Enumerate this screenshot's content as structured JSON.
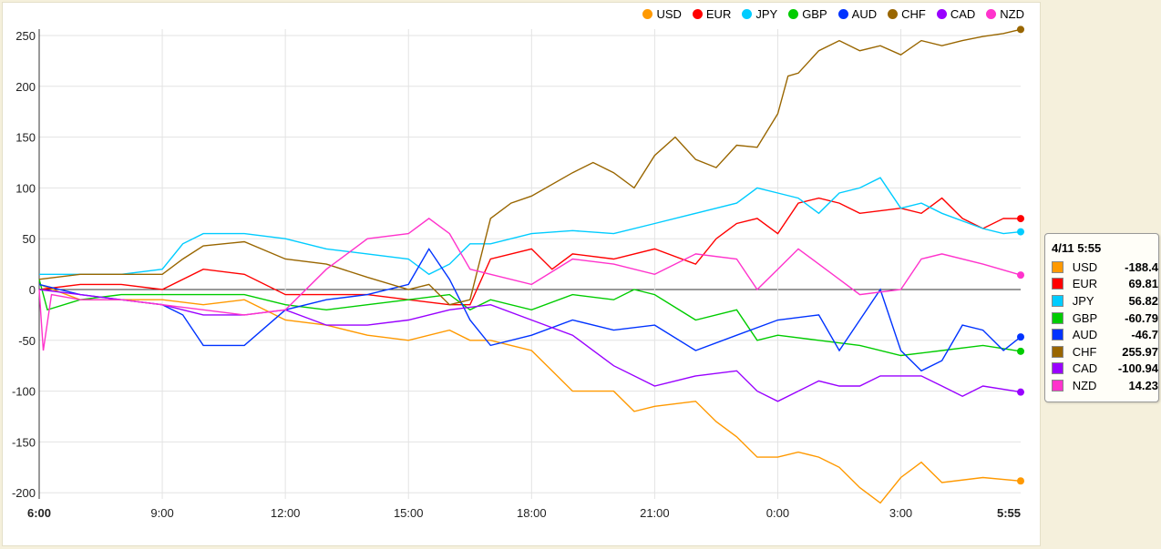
{
  "chart_data": {
    "type": "line",
    "title": "",
    "xlabel": "",
    "ylabel": "",
    "ylim": [
      -210,
      260
    ],
    "xlim_hours": [
      0,
      23.92
    ],
    "x_tick_labels": [
      "6:00",
      "9:00",
      "12:00",
      "15:00",
      "18:00",
      "21:00",
      "0:00",
      "3:00",
      "5:55"
    ],
    "x_tick_hours": [
      0,
      3,
      6,
      9,
      12,
      15,
      18,
      21,
      23.92
    ],
    "y_ticks": [
      -200,
      -150,
      -100,
      -50,
      0,
      50,
      100,
      150,
      200,
      250
    ],
    "legend_position": "top-right",
    "series": [
      {
        "name": "USD",
        "color": "#ff9900",
        "x": [
          0,
          1,
          2,
          3,
          4,
          5,
          6,
          7,
          8,
          9,
          10,
          10.5,
          11,
          11.5,
          12,
          12.5,
          13,
          14,
          14.5,
          15,
          16,
          16.5,
          17,
          17.5,
          18,
          18.5,
          19,
          19.5,
          20,
          20.5,
          21,
          21.5,
          22,
          23,
          23.92
        ],
        "y": [
          5,
          -10,
          -10,
          -10,
          -15,
          -10,
          -30,
          -35,
          -45,
          -50,
          -40,
          -50,
          -50,
          -55,
          -60,
          -80,
          -100,
          -100,
          -120,
          -115,
          -110,
          -130,
          -145,
          -165,
          -165,
          -160,
          -165,
          -175,
          -195,
          -210,
          -185,
          -170,
          -190,
          -185,
          -188.4
        ]
      },
      {
        "name": "EUR",
        "color": "#ff0000",
        "x": [
          0,
          1,
          2,
          3,
          4,
          5,
          6,
          7,
          8,
          9,
          10,
          10.5,
          11,
          12,
          12.5,
          13,
          14,
          15,
          16,
          16.5,
          17,
          17.5,
          18,
          18.5,
          19,
          19.5,
          20,
          21,
          21.5,
          22,
          22.5,
          23,
          23.5,
          23.92
        ],
        "y": [
          0,
          5,
          5,
          0,
          20,
          15,
          -5,
          -5,
          -5,
          -10,
          -15,
          -15,
          30,
          40,
          20,
          35,
          30,
          40,
          25,
          50,
          65,
          70,
          55,
          85,
          90,
          85,
          75,
          80,
          75,
          90,
          70,
          60,
          70,
          69.81
        ]
      },
      {
        "name": "JPY",
        "color": "#00ccff",
        "x": [
          0,
          1,
          2,
          3,
          3.5,
          4,
          5,
          6,
          7,
          8,
          9,
          9.5,
          10,
          10.5,
          11,
          12,
          13,
          14,
          15,
          16,
          17,
          17.5,
          18,
          18.5,
          19,
          19.5,
          20,
          20.5,
          21,
          21.5,
          22,
          23,
          23.5,
          23.92
        ],
        "y": [
          15,
          15,
          15,
          20,
          45,
          55,
          55,
          50,
          40,
          35,
          30,
          15,
          25,
          45,
          45,
          55,
          58,
          55,
          65,
          75,
          85,
          100,
          95,
          90,
          75,
          95,
          100,
          110,
          80,
          85,
          75,
          60,
          55,
          56.82
        ]
      },
      {
        "name": "GBP",
        "color": "#00cc00",
        "x": [
          0,
          0.2,
          1,
          2,
          3,
          4,
          5,
          6,
          7,
          8,
          9,
          10,
          10.5,
          11,
          12,
          13,
          14,
          14.5,
          15,
          16,
          17,
          17.5,
          18,
          19,
          20,
          21,
          22,
          23,
          23.92
        ],
        "y": [
          10,
          -20,
          -10,
          -5,
          -5,
          -5,
          -5,
          -15,
          -20,
          -15,
          -10,
          -5,
          -20,
          -10,
          -20,
          -5,
          -10,
          0,
          -5,
          -30,
          -20,
          -50,
          -45,
          -50,
          -55,
          -65,
          -60,
          -55,
          -60.79
        ]
      },
      {
        "name": "AUD",
        "color": "#0033ff",
        "x": [
          0,
          1,
          2,
          3,
          3.5,
          4,
          5,
          6,
          7,
          8,
          9,
          9.5,
          10,
          10.5,
          11,
          12,
          13,
          14,
          15,
          16,
          17,
          18,
          19,
          19.5,
          20,
          20.5,
          21,
          21.5,
          22,
          22.5,
          23,
          23.5,
          23.92
        ],
        "y": [
          5,
          -5,
          -10,
          -15,
          -25,
          -55,
          -55,
          -20,
          -10,
          -5,
          5,
          40,
          10,
          -30,
          -55,
          -45,
          -30,
          -40,
          -35,
          -60,
          -45,
          -30,
          -25,
          -60,
          -30,
          0,
          -60,
          -80,
          -70,
          -35,
          -40,
          -60,
          -46.7
        ]
      },
      {
        "name": "CHF",
        "color": "#996600",
        "x": [
          0,
          1,
          2,
          3,
          3.5,
          4,
          5,
          6,
          7,
          8,
          9,
          9.5,
          10,
          10.5,
          11,
          11.5,
          12,
          13,
          13.5,
          14,
          14.5,
          15,
          15.5,
          16,
          16.5,
          17,
          17.5,
          18,
          18.25,
          18.5,
          19,
          19.5,
          20,
          20.5,
          21,
          21.5,
          22,
          22.5,
          23,
          23.5,
          23.92
        ],
        "y": [
          10,
          15,
          15,
          15,
          30,
          43,
          47,
          30,
          25,
          12,
          0,
          5,
          -15,
          -10,
          70,
          85,
          92,
          115,
          125,
          115,
          100,
          132,
          150,
          128,
          120,
          142,
          140,
          173,
          210,
          213,
          235,
          245,
          235,
          240,
          231,
          245,
          240,
          245,
          249,
          252,
          255.97
        ]
      },
      {
        "name": "CAD",
        "color": "#9900ff",
        "x": [
          0,
          1,
          2,
          3,
          4,
          5,
          6,
          7,
          8,
          9,
          10,
          11,
          12,
          13,
          14,
          15,
          16,
          17,
          17.5,
          18,
          19,
          19.5,
          20,
          20.5,
          21,
          21.5,
          22,
          22.5,
          23,
          23.92
        ],
        "y": [
          0,
          -5,
          -10,
          -15,
          -25,
          -25,
          -20,
          -35,
          -35,
          -30,
          -20,
          -15,
          -30,
          -45,
          -75,
          -95,
          -85,
          -80,
          -100,
          -110,
          -90,
          -95,
          -95,
          -85,
          -85,
          -85,
          -95,
          -105,
          -95,
          -100.94
        ]
      },
      {
        "name": "NZD",
        "color": "#ff33cc",
        "x": [
          0,
          0.1,
          0.3,
          1,
          2,
          3,
          4,
          5,
          6,
          7,
          8,
          9,
          9.5,
          10,
          10.5,
          11,
          12,
          13,
          14,
          15,
          16,
          17,
          17.5,
          18,
          18.5,
          19,
          19.5,
          20,
          21,
          21.5,
          22,
          23,
          23.92
        ],
        "y": [
          0,
          -60,
          -5,
          -10,
          -10,
          -15,
          -20,
          -25,
          -20,
          20,
          50,
          55,
          70,
          55,
          20,
          15,
          5,
          30,
          25,
          15,
          35,
          30,
          0,
          20,
          40,
          25,
          10,
          -5,
          0,
          30,
          35,
          25,
          14.23
        ]
      }
    ]
  },
  "tooltip": {
    "title": "4/11 5:55",
    "rows": [
      {
        "name": "USD",
        "value": "-188.4",
        "color": "#ff9900"
      },
      {
        "name": "EUR",
        "value": "69.81",
        "color": "#ff0000"
      },
      {
        "name": "JPY",
        "value": "56.82",
        "color": "#00ccff"
      },
      {
        "name": "GBP",
        "value": "-60.79",
        "color": "#00cc00"
      },
      {
        "name": "AUD",
        "value": "-46.7",
        "color": "#0033ff"
      },
      {
        "name": "CHF",
        "value": "255.97",
        "color": "#996600"
      },
      {
        "name": "CAD",
        "value": "-100.94",
        "color": "#9900ff"
      },
      {
        "name": "NZD",
        "value": "14.23",
        "color": "#ff33cc"
      }
    ]
  }
}
